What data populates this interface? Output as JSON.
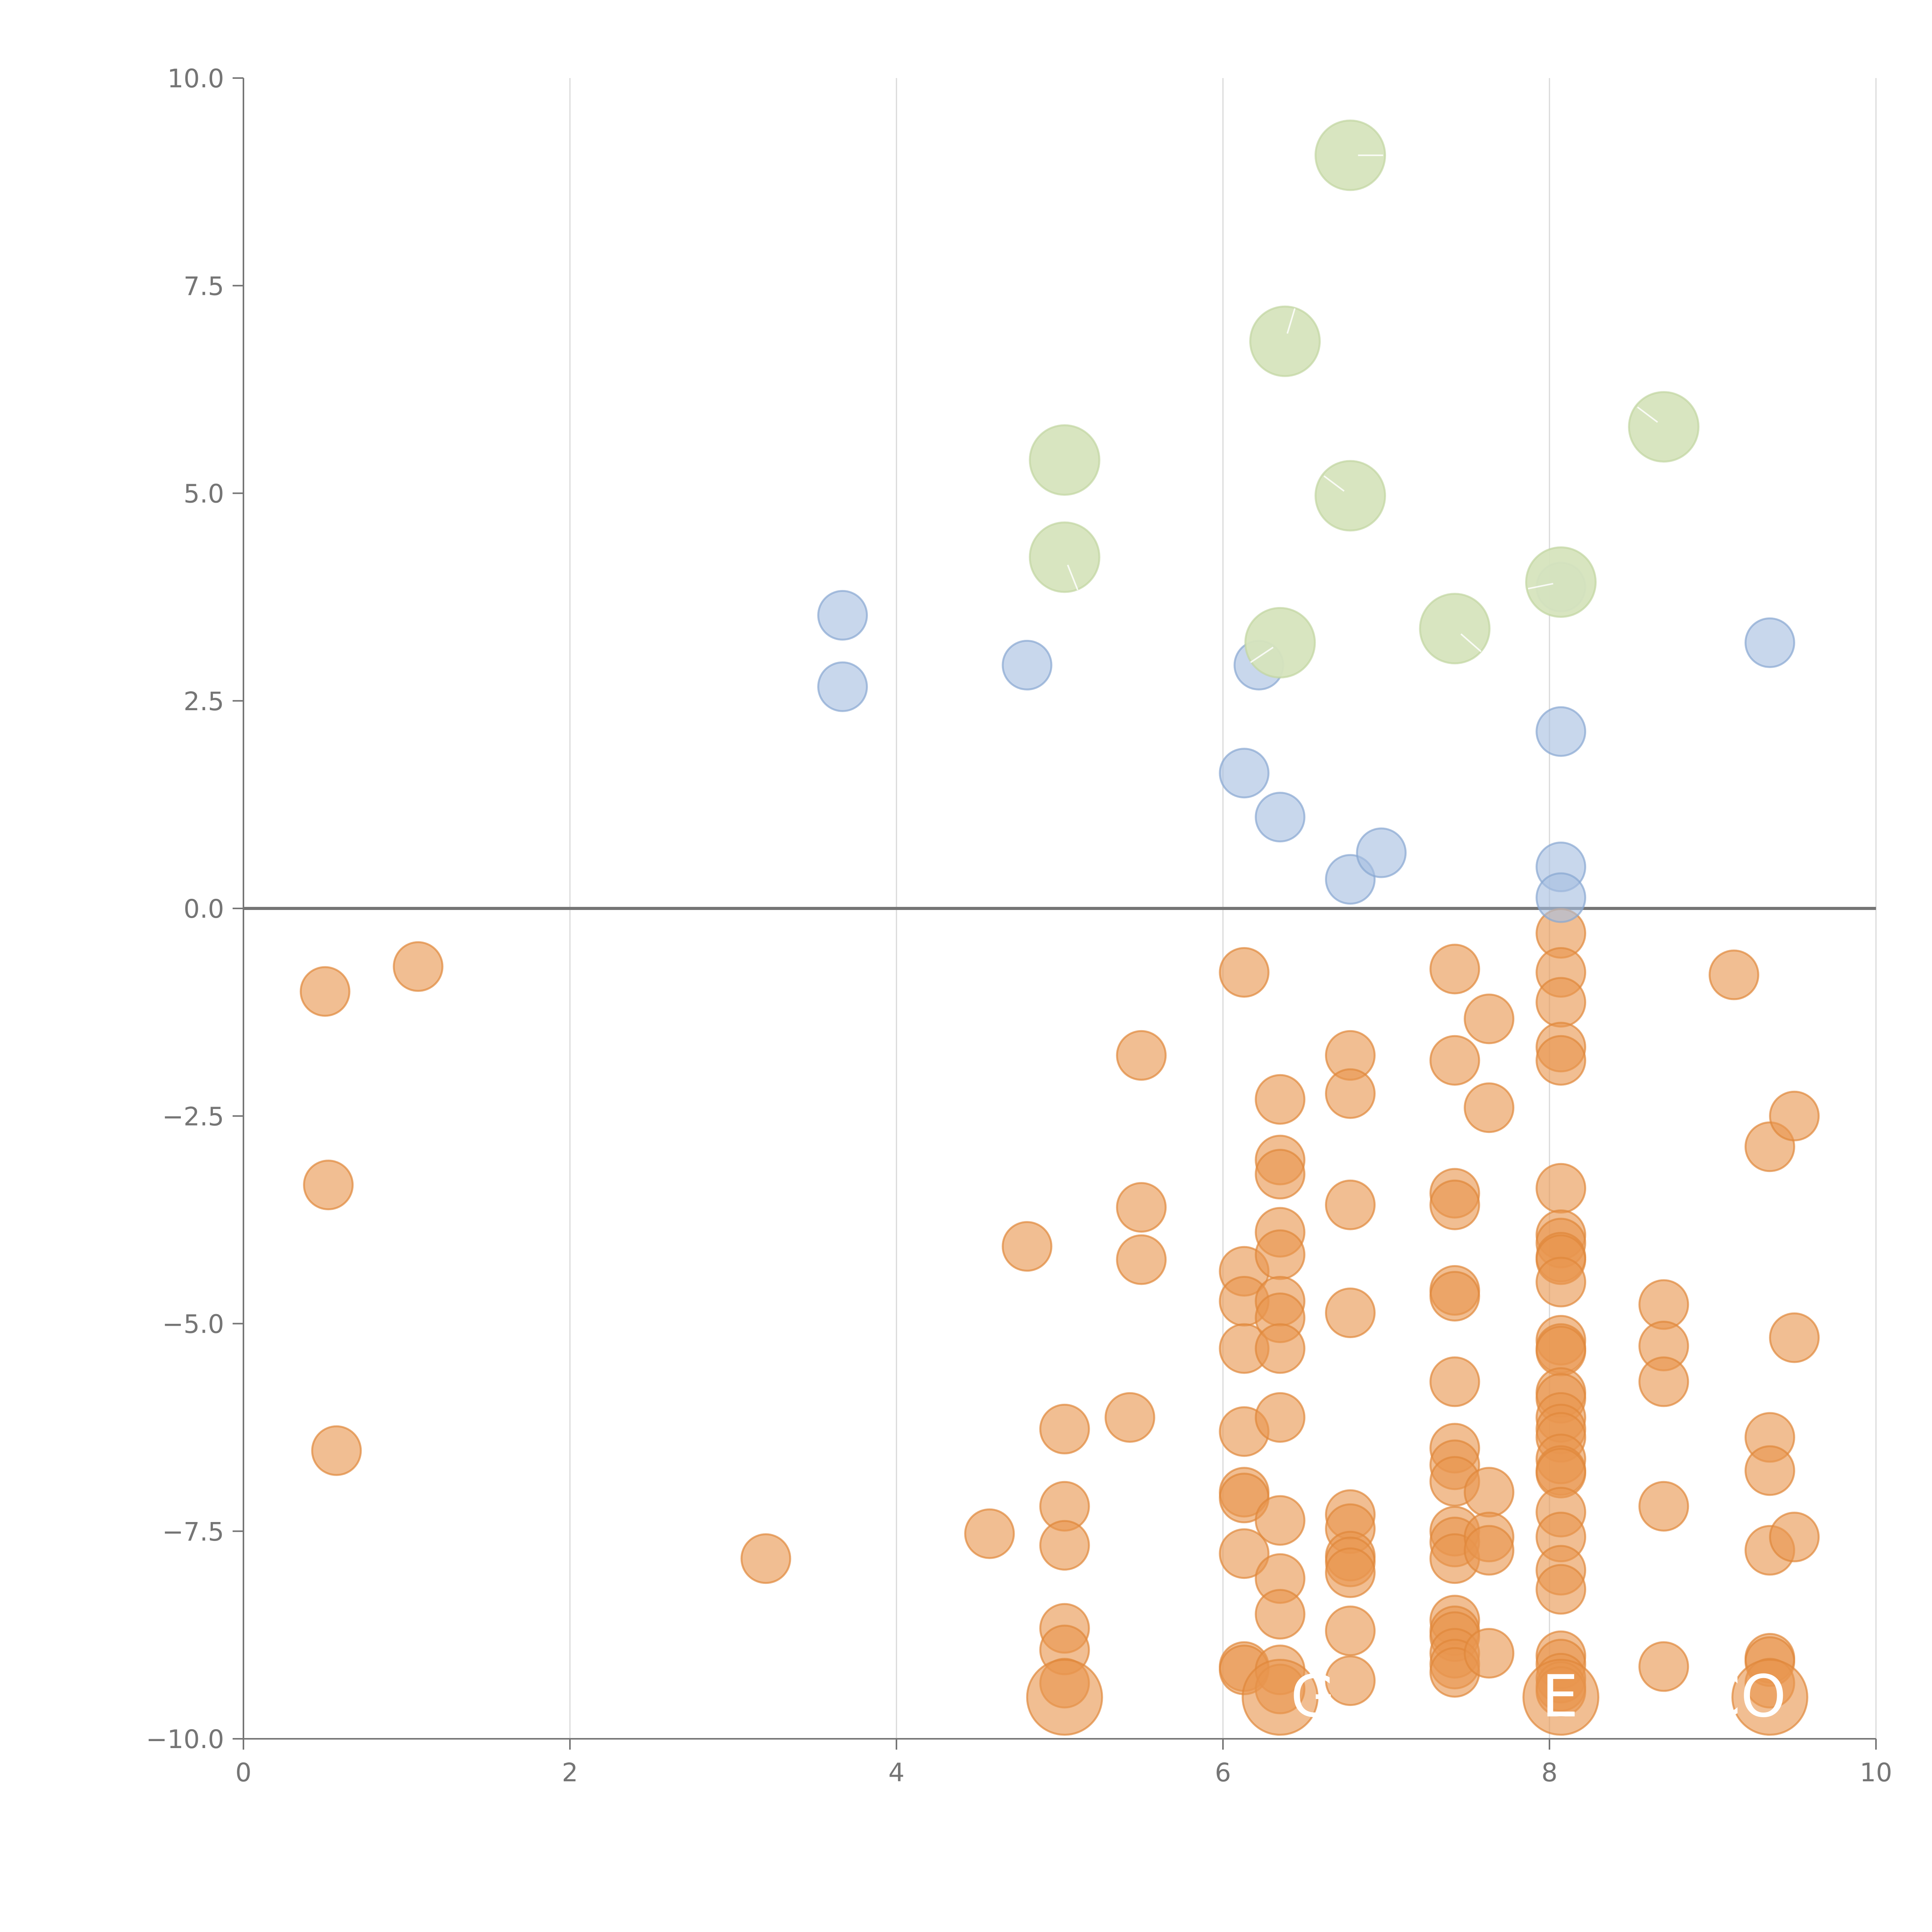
{
  "chart_data": {
    "type": "scatter",
    "title": "",
    "xlabel": "",
    "ylabel": "",
    "xlim": [
      0,
      10
    ],
    "ylim": [
      -10,
      10
    ],
    "x_ticks": [
      "0",
      "2",
      "4",
      "6",
      "8",
      "10"
    ],
    "y_ticks": [
      "−10.0",
      "−7.5",
      "−5.0",
      "−2.5",
      "0.0",
      "2.5",
      "5.0",
      "7.5",
      "10.0"
    ],
    "grid": "vertical",
    "reference_line_y": 0,
    "series": [
      {
        "name": "orange",
        "color": "#e8964f",
        "stroke": "#e0883a",
        "size": "small",
        "points": [
          [
            0.5,
            -1.0
          ],
          [
            1.07,
            -0.7
          ],
          [
            0.52,
            -3.33
          ],
          [
            0.57,
            -6.53
          ],
          [
            3.2,
            -7.83
          ],
          [
            4.57,
            -7.53
          ],
          [
            4.8,
            -4.07
          ],
          [
            5.03,
            -6.27
          ],
          [
            5.03,
            -7.2
          ],
          [
            5.03,
            -7.67
          ],
          [
            5.03,
            -8.67
          ],
          [
            5.03,
            -8.93
          ],
          [
            5.03,
            -9.33
          ],
          [
            5.43,
            -6.13
          ],
          [
            5.5,
            -1.77
          ],
          [
            5.5,
            -3.6
          ],
          [
            5.5,
            -4.23
          ],
          [
            6.13,
            -0.77
          ],
          [
            6.13,
            -4.37
          ],
          [
            6.13,
            -4.73
          ],
          [
            6.13,
            -5.3
          ],
          [
            6.13,
            -6.3
          ],
          [
            6.13,
            -7.03
          ],
          [
            6.13,
            -7.1
          ],
          [
            6.13,
            -7.77
          ],
          [
            6.13,
            -9.13
          ],
          [
            6.13,
            -9.17
          ],
          [
            6.35,
            -2.3
          ],
          [
            6.35,
            -3.03
          ],
          [
            6.35,
            -3.2
          ],
          [
            6.35,
            -3.9
          ],
          [
            6.35,
            -4.17
          ],
          [
            6.35,
            -4.73
          ],
          [
            6.35,
            -4.93
          ],
          [
            6.35,
            -5.3
          ],
          [
            6.35,
            -6.13
          ],
          [
            6.35,
            -7.37
          ],
          [
            6.35,
            -8.07
          ],
          [
            6.35,
            -8.5
          ],
          [
            6.35,
            -9.17
          ],
          [
            6.35,
            -9.4
          ],
          [
            6.78,
            -1.77
          ],
          [
            6.78,
            -2.23
          ],
          [
            6.78,
            -3.57
          ],
          [
            6.78,
            -4.87
          ],
          [
            6.78,
            -7.3
          ],
          [
            6.78,
            -7.47
          ],
          [
            6.78,
            -7.8
          ],
          [
            6.78,
            -7.87
          ],
          [
            6.78,
            -8.0
          ],
          [
            6.78,
            -8.7
          ],
          [
            6.78,
            -9.3
          ],
          [
            7.42,
            -0.73
          ],
          [
            7.42,
            -1.83
          ],
          [
            7.42,
            -3.43
          ],
          [
            7.42,
            -3.57
          ],
          [
            7.42,
            -4.6
          ],
          [
            7.42,
            -4.67
          ],
          [
            7.42,
            -5.7
          ],
          [
            7.42,
            -6.5
          ],
          [
            7.42,
            -6.7
          ],
          [
            7.42,
            -6.9
          ],
          [
            7.42,
            -7.5
          ],
          [
            7.42,
            -7.63
          ],
          [
            7.42,
            -7.83
          ],
          [
            7.42,
            -8.57
          ],
          [
            7.42,
            -8.7
          ],
          [
            7.42,
            -8.77
          ],
          [
            7.42,
            -8.97
          ],
          [
            7.42,
            -9.1
          ],
          [
            7.42,
            -9.2
          ],
          [
            7.63,
            -1.33
          ],
          [
            7.63,
            -2.4
          ],
          [
            7.63,
            -7.03
          ],
          [
            7.63,
            -7.57
          ],
          [
            7.63,
            -7.73
          ],
          [
            7.63,
            -8.97
          ],
          [
            8.07,
            -0.3
          ],
          [
            8.07,
            -0.77
          ],
          [
            8.07,
            -1.13
          ],
          [
            8.07,
            -1.67
          ],
          [
            8.07,
            -1.83
          ],
          [
            8.07,
            -3.37
          ],
          [
            8.07,
            -3.93
          ],
          [
            8.07,
            -4.03
          ],
          [
            8.07,
            -4.2
          ],
          [
            8.07,
            -4.23
          ],
          [
            8.07,
            -4.5
          ],
          [
            8.07,
            -5.2
          ],
          [
            8.07,
            -5.3
          ],
          [
            8.07,
            -5.33
          ],
          [
            8.07,
            -5.83
          ],
          [
            8.07,
            -5.9
          ],
          [
            8.07,
            -6.13
          ],
          [
            8.07,
            -6.27
          ],
          [
            8.07,
            -6.37
          ],
          [
            8.07,
            -6.63
          ],
          [
            8.07,
            -6.77
          ],
          [
            8.07,
            -6.8
          ],
          [
            8.07,
            -7.27
          ],
          [
            8.07,
            -7.57
          ],
          [
            8.07,
            -7.97
          ],
          [
            8.07,
            -8.2
          ],
          [
            8.07,
            -9.0
          ],
          [
            8.07,
            -9.1
          ],
          [
            8.07,
            -9.27
          ],
          [
            8.07,
            -9.37
          ],
          [
            8.07,
            -9.43
          ],
          [
            8.7,
            -4.77
          ],
          [
            8.7,
            -5.27
          ],
          [
            8.7,
            -5.7
          ],
          [
            8.7,
            -7.2
          ],
          [
            8.7,
            -9.13
          ],
          [
            9.13,
            -0.8
          ],
          [
            9.35,
            -2.87
          ],
          [
            9.35,
            -6.37
          ],
          [
            9.35,
            -6.77
          ],
          [
            9.35,
            -7.73
          ],
          [
            9.35,
            -9.03
          ],
          [
            9.35,
            -9.07
          ],
          [
            9.35,
            -9.33
          ],
          [
            9.5,
            -2.5
          ],
          [
            9.5,
            -5.17
          ],
          [
            9.5,
            -7.57
          ]
        ],
        "large_points": [
          [
            5.03,
            -9.5
          ],
          [
            6.35,
            -9.5
          ],
          [
            8.07,
            -9.5
          ],
          [
            9.35,
            -9.5
          ]
        ]
      },
      {
        "name": "blue",
        "color": "#a7bfe0",
        "stroke": "#87a6d1",
        "size": "small",
        "points": [
          [
            3.67,
            3.53
          ],
          [
            3.67,
            2.67
          ],
          [
            4.8,
            2.93
          ],
          [
            6.22,
            2.93
          ],
          [
            6.13,
            1.63
          ],
          [
            6.35,
            1.1
          ],
          [
            6.78,
            0.35
          ],
          [
            6.97,
            0.67
          ],
          [
            8.07,
            3.87
          ],
          [
            8.07,
            2.13
          ],
          [
            8.07,
            0.5
          ],
          [
            8.07,
            0.13
          ],
          [
            9.35,
            3.2
          ]
        ]
      },
      {
        "name": "green",
        "color": "#d6e4bd",
        "stroke": "#c2d6a1",
        "size": "large",
        "points": [
          [
            6.78,
            9.07
          ],
          [
            6.38,
            6.83
          ],
          [
            5.03,
            5.4
          ],
          [
            8.7,
            5.8
          ],
          [
            6.78,
            4.97
          ],
          [
            5.03,
            4.23
          ],
          [
            8.07,
            3.93
          ],
          [
            7.42,
            3.37
          ],
          [
            6.35,
            3.2
          ]
        ]
      }
    ],
    "annotations": [
      "G",
      "E",
      "CO"
    ]
  }
}
